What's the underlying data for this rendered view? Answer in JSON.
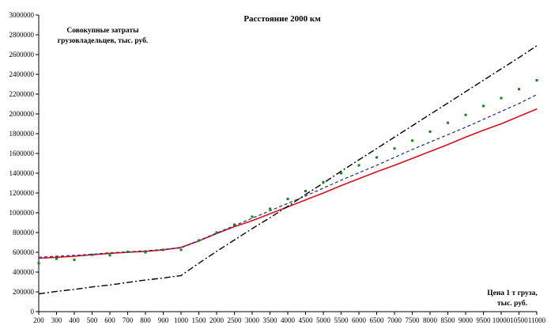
{
  "chart_data": {
    "type": "line",
    "title": "Расстояние 2000 км",
    "ylabel_lines": [
      "Совокупные затраты",
      "грузовладельцев, тыс. руб."
    ],
    "xlabel_lines": [
      "Цена 1 т груза,",
      "тыс. руб."
    ],
    "x": [
      200,
      300,
      400,
      500,
      600,
      700,
      800,
      900,
      1000,
      1500,
      2000,
      2500,
      3000,
      3500,
      4000,
      4500,
      5000,
      5500,
      6000,
      6500,
      7000,
      7500,
      8000,
      8500,
      9000,
      9500,
      10000,
      10500,
      11000
    ],
    "x_tick_labels": [
      "200",
      "300",
      "400",
      "500",
      "600",
      "700",
      "800",
      "900",
      "1000",
      "1500",
      "2000",
      "2500",
      "3000",
      "3500",
      "4000",
      "4500",
      "5000",
      "5500",
      "6000",
      "6500",
      "7000",
      "7500",
      "8000",
      "8500",
      "9000",
      "9500",
      "10000",
      "10500",
      "11000"
    ],
    "y_ticks": [
      0,
      200000,
      400000,
      600000,
      800000,
      1000000,
      1200000,
      1400000,
      1600000,
      1800000,
      2000000,
      2200000,
      2400000,
      2600000,
      2800000,
      3000000
    ],
    "ylim": [
      0,
      3000000
    ],
    "grid": false,
    "legend": "none",
    "series": [
      {
        "style": "solid",
        "color": "#e0101f",
        "values": [
          540000,
          550000,
          560000,
          575000,
          590000,
          600000,
          610000,
          625000,
          650000,
          715000,
          790000,
          860000,
          920000,
          990000,
          1060000,
          1130000,
          1200000,
          1275000,
          1345000,
          1415000,
          1480000,
          1550000,
          1620000,
          1690000,
          1765000,
          1835000,
          1900000,
          1975000,
          2050000
        ]
      },
      {
        "style": "dashdot",
        "color": "#000000",
        "values": [
          180000,
          205000,
          225000,
          250000,
          270000,
          295000,
          320000,
          340000,
          365000,
          490000,
          610000,
          725000,
          840000,
          950000,
          1065000,
          1185000,
          1300000,
          1420000,
          1535000,
          1650000,
          1765000,
          1880000,
          1995000,
          2110000,
          2225000,
          2340000,
          2455000,
          2570000,
          2690000
        ]
      },
      {
        "style": "dashed",
        "color": "#1f2a8c",
        "values": [
          550000,
          560000,
          570000,
          580000,
          595000,
          605000,
          615000,
          630000,
          645000,
          720000,
          795000,
          870000,
          945000,
          1020000,
          1095000,
          1170000,
          1250000,
          1330000,
          1405000,
          1480000,
          1560000,
          1640000,
          1715000,
          1790000,
          1865000,
          1945000,
          2025000,
          2105000,
          2195000
        ]
      },
      {
        "style": "markers",
        "color": "#0d8a1e",
        "values": [
          490000,
          535000,
          525000,
          575000,
          570000,
          605000,
          600000,
          625000,
          625000,
          720000,
          800000,
          880000,
          960000,
          1040000,
          1140000,
          1220000,
          1310000,
          1400000,
          1480000,
          1560000,
          1650000,
          1730000,
          1820000,
          1910000,
          1990000,
          2080000,
          2160000,
          2250000,
          2340000
        ]
      }
    ]
  }
}
